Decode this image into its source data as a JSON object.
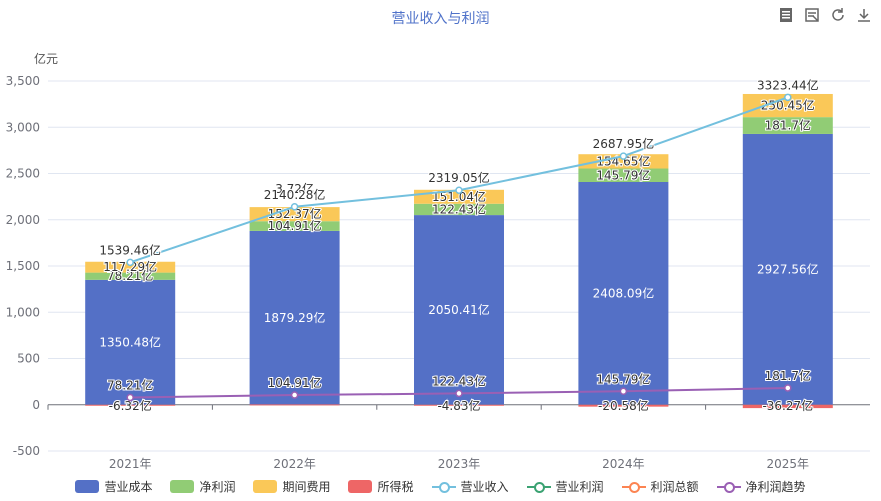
{
  "title": "营业收入与利润",
  "toolbar": {
    "icons": [
      "data-view-icon",
      "table-view-icon",
      "restore-icon",
      "download-icon"
    ]
  },
  "chart_data": {
    "type": "bar",
    "categories": [
      "2021年",
      "2022年",
      "2023年",
      "2024年",
      "2025年"
    ],
    "y_unit": "亿元",
    "ylim": [
      -500,
      3500
    ],
    "y_ticks": [
      "-500",
      "0",
      "500",
      "1,000",
      "1,500",
      "2,000",
      "2,500",
      "3,000",
      "3,500"
    ],
    "y_tick_values": [
      -500,
      0,
      500,
      1000,
      1500,
      2000,
      2500,
      3000,
      3500
    ],
    "grid": true,
    "legend_position": "bottom",
    "stacked_series": [
      {
        "name": "营业成本",
        "color": "#5470c6",
        "values": [
          1350.48,
          1879.29,
          2050.41,
          2408.09,
          2927.56
        ],
        "labels": [
          "1350.48亿",
          "1879.29亿",
          "2050.41亿",
          "2408.09亿",
          "2927.56亿"
        ]
      },
      {
        "name": "净利润",
        "color": "#91cc75",
        "values": [
          78.21,
          104.91,
          122.43,
          145.79,
          181.7
        ],
        "labels": [
          "78.21亿",
          "104.91亿",
          "122.43亿",
          "145.79亿",
          "181.7亿"
        ]
      },
      {
        "name": "期间费用",
        "color": "#fac858",
        "values": [
          117.29,
          152.37,
          151.04,
          154.65,
          250.45
        ],
        "labels": [
          "117.29亿",
          "152.37亿",
          "151.04亿",
          "154.65亿",
          "250.45亿"
        ]
      }
    ],
    "tax_series": {
      "name": "所得税",
      "color": "#ee6666",
      "values": [
        -6.32,
        3.72,
        -4.83,
        -20.58,
        -36.27
      ],
      "labels": [
        "-6.32亿",
        "3.72亿",
        "-4.83亿",
        "-20.58亿",
        "-36.27亿"
      ]
    },
    "line_series": [
      {
        "name": "营业收入",
        "color": "#73c0de",
        "values": [
          1539.46,
          2140.28,
          2319.05,
          2687.95,
          3323.44
        ],
        "labels": [
          "1539.46亿",
          "2140.28亿",
          "2319.05亿",
          "2687.95亿",
          "3323.44亿"
        ]
      },
      {
        "name": "营业利润",
        "color": "#3ba272",
        "values": [],
        "labels": []
      },
      {
        "name": "利润总额",
        "color": "#fc8452",
        "values": [],
        "labels": []
      },
      {
        "name": "净利润趋势",
        "color": "#9a60b4",
        "values": [
          78.21,
          104.91,
          122.43,
          145.79,
          181.7
        ],
        "labels": [
          "78.21亿",
          "104.91亿",
          "122.43亿",
          "145.79亿",
          "181.7亿"
        ]
      }
    ]
  }
}
